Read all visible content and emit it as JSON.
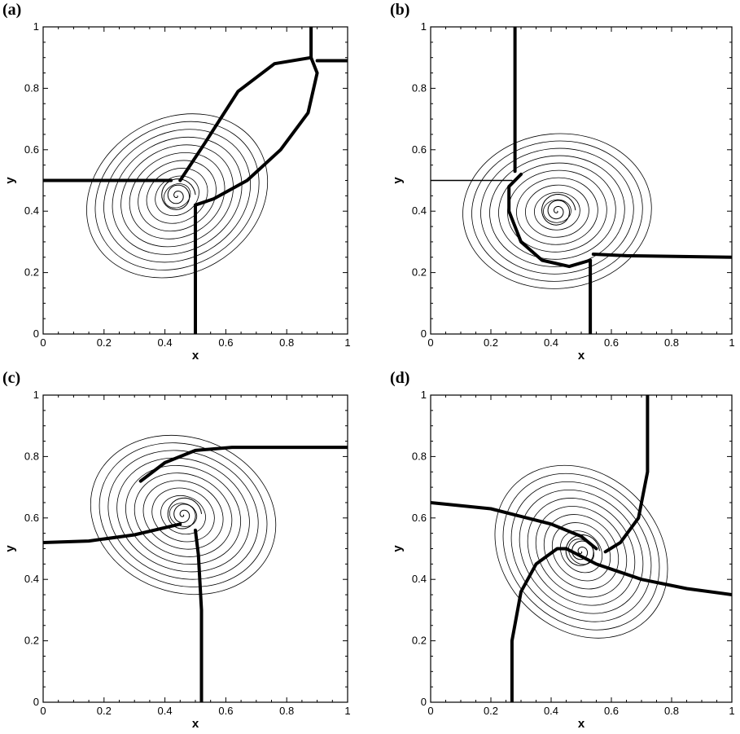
{
  "chart_data": [
    {
      "type": "contour",
      "panel_label": "(a)",
      "xlabel": "x",
      "ylabel": "y",
      "xlim": [
        0,
        1
      ],
      "ylim": [
        0,
        1
      ],
      "xticks": [
        "0",
        "0.2",
        "0.4",
        "0.6",
        "0.8",
        "1"
      ],
      "yticks": [
        "0",
        "0.2",
        "0.4",
        "0.6",
        "0.8",
        "1"
      ],
      "discontinuities": [
        {
          "kind": "shock",
          "points": [
            [
              0,
              0.5
            ],
            [
              0.42,
              0.5
            ]
          ]
        },
        {
          "kind": "shock",
          "points": [
            [
              0.5,
              0.0
            ],
            [
              0.5,
              0.42
            ]
          ]
        },
        {
          "kind": "shock",
          "points": [
            [
              0.88,
              1.0
            ],
            [
              0.88,
              0.9
            ]
          ]
        },
        {
          "kind": "shock",
          "points": [
            [
              0.9,
              0.89
            ],
            [
              1.0,
              0.89
            ]
          ]
        },
        {
          "kind": "shock",
          "points": [
            [
              0.45,
              0.5
            ],
            [
              0.53,
              0.62
            ],
            [
              0.64,
              0.79
            ],
            [
              0.76,
              0.88
            ],
            [
              0.88,
              0.9
            ],
            [
              0.9,
              0.85
            ],
            [
              0.87,
              0.72
            ],
            [
              0.78,
              0.6
            ],
            [
              0.67,
              0.5
            ],
            [
              0.56,
              0.44
            ],
            [
              0.5,
              0.42
            ]
          ]
        }
      ],
      "vortex_center": [
        0.44,
        0.45
      ]
    },
    {
      "type": "contour",
      "panel_label": "(b)",
      "xlabel": "x",
      "ylabel": "y",
      "xlim": [
        0,
        1
      ],
      "ylim": [
        0,
        1
      ],
      "xticks": [
        "0",
        "0.2",
        "0.4",
        "0.6",
        "0.8",
        "1"
      ],
      "yticks": [
        "0",
        "0.2",
        "0.4",
        "0.6",
        "0.8",
        "1"
      ],
      "discontinuities": [
        {
          "kind": "shock",
          "points": [
            [
              0.28,
              1.0
            ],
            [
              0.28,
              0.55
            ],
            [
              0.28,
              0.53
            ]
          ]
        },
        {
          "kind": "line",
          "points": [
            [
              0,
              0.5
            ],
            [
              0.27,
              0.5
            ]
          ]
        },
        {
          "kind": "shock",
          "points": [
            [
              0.53,
              0.0
            ],
            [
              0.53,
              0.24
            ]
          ]
        },
        {
          "kind": "shock",
          "points": [
            [
              0.54,
              0.26
            ],
            [
              0.65,
              0.255
            ],
            [
              1.0,
              0.25
            ]
          ]
        },
        {
          "kind": "shock",
          "points": [
            [
              0.3,
              0.52
            ],
            [
              0.26,
              0.48
            ],
            [
              0.26,
              0.4
            ],
            [
              0.3,
              0.3
            ],
            [
              0.37,
              0.24
            ],
            [
              0.46,
              0.22
            ],
            [
              0.53,
              0.24
            ]
          ]
        }
      ],
      "vortex_center": [
        0.42,
        0.4
      ]
    },
    {
      "type": "contour",
      "panel_label": "(c)",
      "xlabel": "x",
      "ylabel": "y",
      "xlim": [
        0,
        1
      ],
      "ylim": [
        0,
        1
      ],
      "xticks": [
        "0",
        "0.2",
        "0.4",
        "0.6",
        "0.8",
        "1"
      ],
      "yticks": [
        "0",
        "0.2",
        "0.4",
        "0.6",
        "0.8",
        "1"
      ],
      "discontinuities": [
        {
          "kind": "shock",
          "points": [
            [
              0,
              0.52
            ],
            [
              0.15,
              0.525
            ],
            [
              0.3,
              0.545
            ],
            [
              0.45,
              0.58
            ]
          ]
        },
        {
          "kind": "shock",
          "points": [
            [
              0.52,
              0.0
            ],
            [
              0.52,
              0.3
            ],
            [
              0.51,
              0.48
            ],
            [
              0.5,
              0.56
            ]
          ]
        },
        {
          "kind": "shock",
          "points": [
            [
              0.32,
              0.72
            ],
            [
              0.4,
              0.78
            ],
            [
              0.5,
              0.82
            ],
            [
              0.62,
              0.83
            ],
            [
              1.0,
              0.83
            ]
          ]
        }
      ],
      "vortex_center": [
        0.46,
        0.61
      ]
    },
    {
      "type": "contour",
      "panel_label": "(d)",
      "xlabel": "x",
      "ylabel": "y",
      "xlim": [
        0,
        1
      ],
      "ylim": [
        0,
        1
      ],
      "xticks": [
        "0",
        "0.2",
        "0.4",
        "0.6",
        "0.8",
        "1"
      ],
      "yticks": [
        "0",
        "0.2",
        "0.4",
        "0.6",
        "0.8",
        "1"
      ],
      "discontinuities": [
        {
          "kind": "shock",
          "points": [
            [
              0,
              0.65
            ],
            [
              0.2,
              0.63
            ],
            [
              0.4,
              0.58
            ],
            [
              0.5,
              0.54
            ],
            [
              0.55,
              0.5
            ]
          ]
        },
        {
          "kind": "shock",
          "points": [
            [
              0.72,
              1.0
            ],
            [
              0.72,
              0.75
            ],
            [
              0.69,
              0.6
            ],
            [
              0.63,
              0.52
            ],
            [
              0.58,
              0.49
            ]
          ]
        },
        {
          "kind": "shock",
          "points": [
            [
              0.45,
              0.5
            ],
            [
              0.55,
              0.45
            ],
            [
              0.7,
              0.4
            ],
            [
              0.85,
              0.37
            ],
            [
              1.0,
              0.35
            ]
          ]
        },
        {
          "kind": "shock",
          "points": [
            [
              0.27,
              0.0
            ],
            [
              0.27,
              0.2
            ],
            [
              0.3,
              0.36
            ],
            [
              0.35,
              0.45
            ],
            [
              0.42,
              0.5
            ],
            [
              0.45,
              0.5
            ]
          ]
        }
      ],
      "vortex_center": [
        0.5,
        0.49
      ]
    }
  ]
}
